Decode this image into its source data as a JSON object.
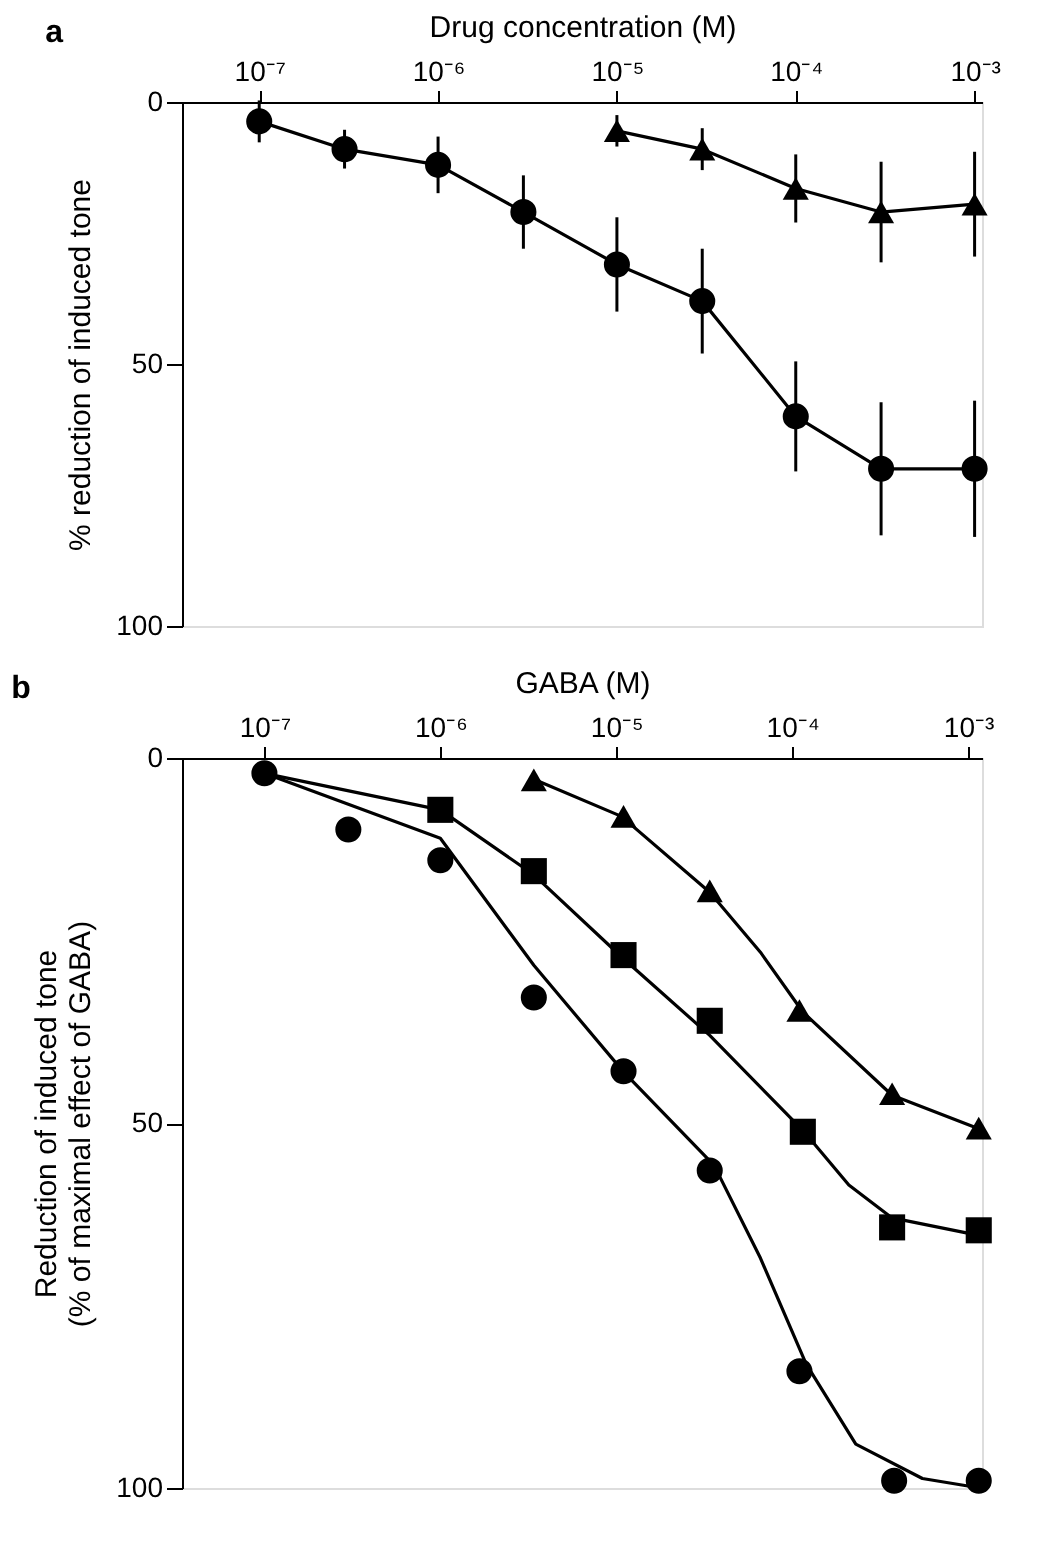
{
  "chart_data": [
    {
      "type": "line",
      "title": "a",
      "xlabel": "Drug concentration (M)",
      "ylabel": "% reduction of induced tone",
      "log": "x",
      "xlim": [
        3.7e-08,
        0.0011
      ],
      "xticks": [
        {
          "value": 1e-07,
          "label": "10⁻⁷"
        },
        {
          "value": 1e-06,
          "label": "10⁻⁶"
        },
        {
          "value": 1e-05,
          "label": "10⁻⁵"
        },
        {
          "value": 0.0001,
          "label": "10⁻⁴"
        },
        {
          "value": 0.001,
          "label": "10⁻³"
        }
      ],
      "ylim": [
        100,
        0
      ],
      "yticks": [
        0,
        50,
        100
      ],
      "grid": false,
      "series": [
        {
          "marker": "circle",
          "line_style": "solid",
          "color": "#000000",
          "x": [
            1e-07,
            3e-07,
            1e-06,
            3e-06,
            1e-05,
            3e-05,
            0.0001,
            0.0003,
            0.001
          ],
          "values": [
            3.7,
            9,
            12,
            21,
            31,
            38,
            60,
            70,
            70
          ],
          "errors": [
            4,
            3.7,
            5.4,
            7,
            9,
            10,
            10.5,
            12.7,
            13
          ]
        },
        {
          "marker": "triangle",
          "line_style": "solid",
          "color": "#000000",
          "x": [
            1e-05,
            3e-05,
            0.0001,
            0.0003,
            0.001
          ],
          "values": [
            5.5,
            9,
            16.5,
            21,
            19.5
          ],
          "errors": [
            3,
            4,
            6.5,
            9.6,
            10
          ]
        }
      ]
    },
    {
      "type": "scatter",
      "title": "b",
      "xlabel": "GABA (M)",
      "ylabel": "Reduction of induced tone\n(% of maximal effect of GABA)",
      "log": "x",
      "xlim": [
        3.4e-08,
        0.0012
      ],
      "xticks": [
        {
          "value": 1e-07,
          "label": "10⁻⁷"
        },
        {
          "value": 1e-06,
          "label": "10⁻⁶"
        },
        {
          "value": 1e-05,
          "label": "10⁻⁵"
        },
        {
          "value": 0.0001,
          "label": "10⁻⁴"
        },
        {
          "value": 0.001,
          "label": "10⁻³"
        }
      ],
      "ylim": [
        100,
        0
      ],
      "yticks": [
        0,
        50,
        100
      ],
      "grid": false,
      "series": [
        {
          "marker": "circle",
          "color": "#000000",
          "x": [
            1e-07,
            3e-07,
            1e-06,
            3.4e-06,
            1.1e-05,
            3.4e-05,
            0.00011,
            0.00038,
            0.00115
          ],
          "values": [
            2.1,
            9.8,
            14,
            32.8,
            42.9,
            56.5,
            84,
            99,
            99
          ]
        },
        {
          "marker": "square",
          "color": "#000000",
          "x": [
            1e-06,
            3.4e-06,
            1.1e-05,
            3.4e-05,
            0.000115,
            0.00037,
            0.00115
          ],
          "values": [
            7.1,
            15.5,
            27,
            36,
            51.2,
            64.3,
            64.7
          ]
        },
        {
          "marker": "triangle",
          "color": "#000000",
          "x": [
            3.4e-06,
            1.1e-05,
            3.4e-05,
            0.00011,
            0.00037,
            0.00115
          ],
          "values": [
            3,
            8,
            18.2,
            34.6,
            46,
            50.7
          ]
        },
        {
          "type": "line",
          "marker": "none",
          "line_style": "solid",
          "color": "#000000",
          "x": [
            1e-07,
            1e-06,
            3.4e-06,
            1.1e-05,
            3.6e-05,
            6.6e-05,
            0.00012,
            0.00023,
            0.00055,
            0.00117
          ],
          "values": [
            2.1,
            11,
            28.4,
            43,
            55.8,
            68.5,
            83,
            94,
            98.7,
            100
          ]
        },
        {
          "type": "line",
          "marker": "none",
          "line_style": "solid",
          "color": "#000000",
          "x": [
            1e-07,
            1e-06,
            3.4e-06,
            1.1e-05,
            3.4e-05,
            0.000115,
            0.00021,
            0.00037,
            0.00115
          ],
          "values": [
            2.1,
            7.1,
            16,
            27.5,
            38,
            51,
            58.5,
            63,
            65.4
          ]
        },
        {
          "type": "line",
          "marker": "none",
          "line_style": "solid",
          "color": "#000000",
          "x": [
            3.4e-06,
            1.07e-05,
            3.4e-05,
            6.6e-05,
            0.000115,
            0.00037,
            0.00115
          ],
          "values": [
            2.9,
            8,
            18.4,
            26.6,
            34.8,
            46.2,
            50.8
          ]
        }
      ]
    }
  ]
}
